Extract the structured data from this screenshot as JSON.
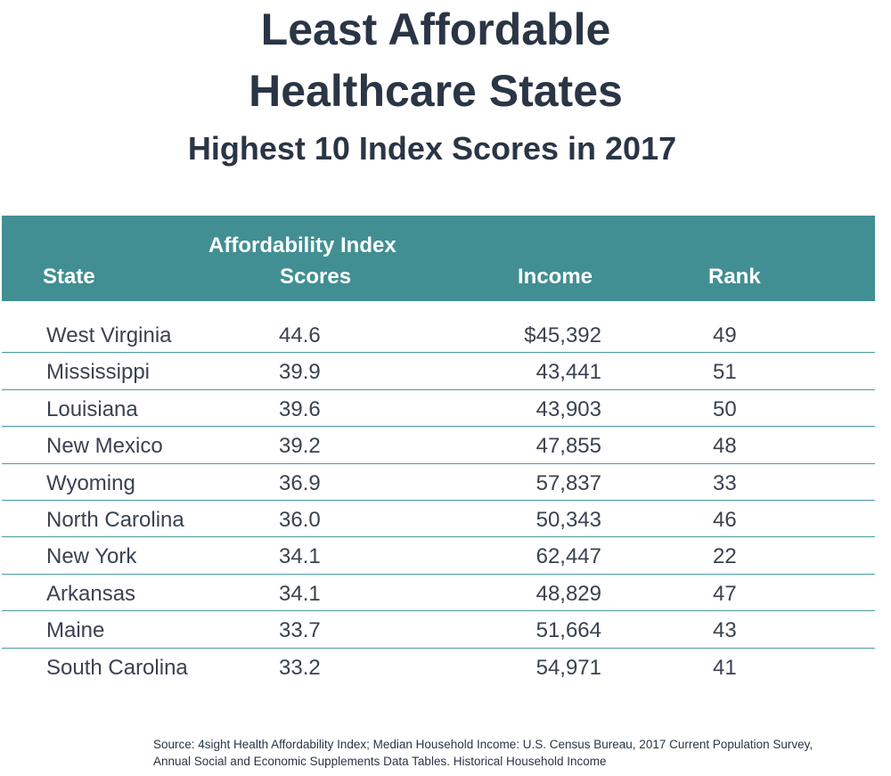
{
  "header": {
    "title_line1": "Least Affordable",
    "title_line2": "Healthcare States",
    "subtitle": "Highest 10 Index Scores in 2017"
  },
  "columns": {
    "state": "State",
    "score_line1": "Affordability Index",
    "score_line2": "Scores",
    "income": "Income",
    "rank": "Rank"
  },
  "chart_data": {
    "type": "table",
    "title": "Least Affordable Healthcare States",
    "subtitle": "Highest 10 Index Scores in 2017",
    "columns": [
      "State",
      "Affordability Index Scores",
      "Income",
      "Rank"
    ],
    "rows": [
      {
        "state": "West Virginia",
        "score": "44.6",
        "income": "$45,392",
        "rank": "49"
      },
      {
        "state": "Mississippi",
        "score": "39.9",
        "income": "43,441",
        "rank": "51"
      },
      {
        "state": "Louisiana",
        "score": "39.6",
        "income": "43,903",
        "rank": "50"
      },
      {
        "state": "New Mexico",
        "score": "39.2",
        "income": "47,855",
        "rank": "48"
      },
      {
        "state": "Wyoming",
        "score": "36.9",
        "income": "57,837",
        "rank": "33"
      },
      {
        "state": "North Carolina",
        "score": "36.0",
        "income": "50,343",
        "rank": "46"
      },
      {
        "state": "New York",
        "score": "34.1",
        "income": "62,447",
        "rank": "22"
      },
      {
        "state": "Arkansas",
        "score": "34.1",
        "income": "48,829",
        "rank": "47"
      },
      {
        "state": "Maine",
        "score": "33.7",
        "income": "51,664",
        "rank": "43"
      },
      {
        "state": "South Carolina",
        "score": "33.2",
        "income": "54,971",
        "rank": "41"
      }
    ]
  },
  "footer": {
    "source_line1": "Source: 4sight Health Affordability Index; Median Household Income: U.S. Census Bureau, 2017 Current Population Survey,",
    "source_line2": "Annual Social and Economic Supplements Data Tables. Historical Household Income"
  },
  "colors": {
    "header_fill": "#418f93",
    "row_rule": "#4a9a9e",
    "title_text": "#2a3545"
  }
}
